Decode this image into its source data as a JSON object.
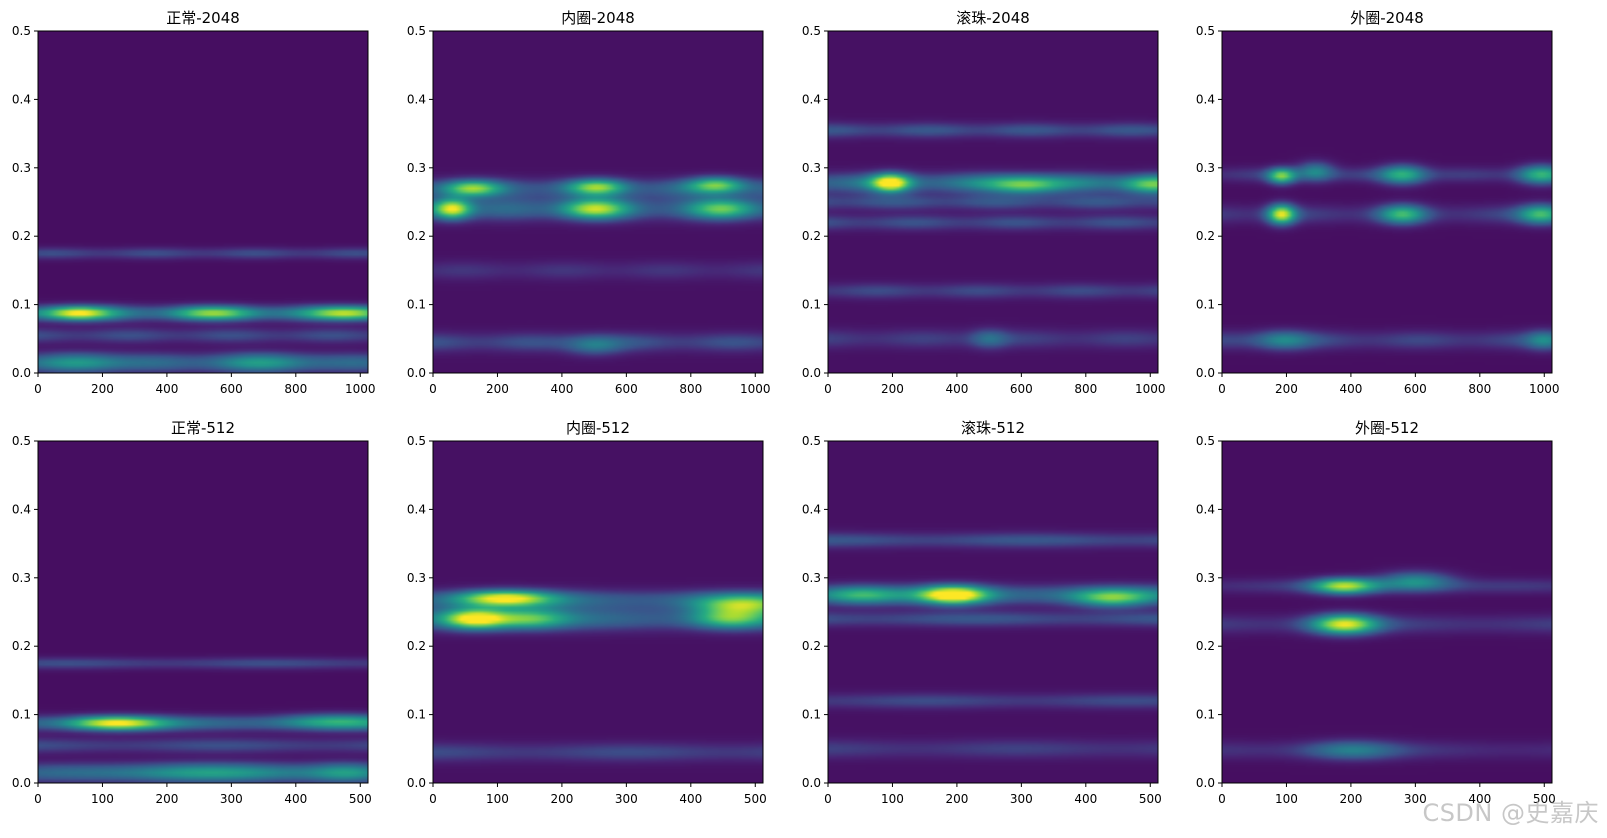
{
  "colormap": "viridis",
  "colors": {
    "low": "#440154",
    "mid": "#21918c",
    "high": "#fde725"
  },
  "watermark": "CSDN @史嘉庆",
  "chart_data": [
    {
      "type": "heatmap",
      "title": "正常-2048",
      "xlim": [
        0,
        1024
      ],
      "ylim": [
        0,
        0.5
      ],
      "xticks": [
        0,
        200,
        400,
        600,
        800,
        1000
      ],
      "yticks": [
        0.0,
        0.1,
        0.2,
        0.3,
        0.4,
        0.5
      ],
      "base_level": 0.05,
      "bands": [
        {
          "y": 0.0875,
          "width": 0.008,
          "level": 0.38
        },
        {
          "y": 0.175,
          "width": 0.006,
          "level": 0.2
        },
        {
          "y": 0.055,
          "width": 0.008,
          "level": 0.2
        },
        {
          "y": 0.015,
          "width": 0.01,
          "level": 0.3
        }
      ],
      "blobs": [
        {
          "x": 120,
          "y": 0.0875,
          "sx": 70,
          "sy": 0.007,
          "level": 0.7
        },
        {
          "x": 550,
          "y": 0.0875,
          "sx": 90,
          "sy": 0.007,
          "level": 0.45
        },
        {
          "x": 960,
          "y": 0.0875,
          "sx": 80,
          "sy": 0.007,
          "level": 0.6
        },
        {
          "x": 150,
          "y": 0.015,
          "sx": 90,
          "sy": 0.01,
          "level": 0.25
        },
        {
          "x": 700,
          "y": 0.015,
          "sx": 120,
          "sy": 0.01,
          "level": 0.22
        }
      ]
    },
    {
      "type": "heatmap",
      "title": "内圈-2048",
      "xlim": [
        0,
        1024
      ],
      "ylim": [
        0,
        0.5
      ],
      "xticks": [
        0,
        200,
        400,
        600,
        800,
        1000
      ],
      "yticks": [
        0.0,
        0.1,
        0.2,
        0.3,
        0.4,
        0.5
      ],
      "base_level": 0.06,
      "bands": [
        {
          "y": 0.27,
          "width": 0.01,
          "level": 0.28
        },
        {
          "y": 0.24,
          "width": 0.012,
          "level": 0.3
        },
        {
          "y": 0.045,
          "width": 0.01,
          "level": 0.2
        },
        {
          "y": 0.15,
          "width": 0.01,
          "level": 0.12
        }
      ],
      "blobs": [
        {
          "x": 60,
          "y": 0.24,
          "sx": 40,
          "sy": 0.01,
          "level": 0.75
        },
        {
          "x": 120,
          "y": 0.27,
          "sx": 60,
          "sy": 0.008,
          "level": 0.55
        },
        {
          "x": 500,
          "y": 0.24,
          "sx": 70,
          "sy": 0.01,
          "level": 0.6
        },
        {
          "x": 510,
          "y": 0.272,
          "sx": 60,
          "sy": 0.008,
          "level": 0.55
        },
        {
          "x": 880,
          "y": 0.275,
          "sx": 60,
          "sy": 0.008,
          "level": 0.55
        },
        {
          "x": 900,
          "y": 0.24,
          "sx": 70,
          "sy": 0.01,
          "level": 0.45
        },
        {
          "x": 500,
          "y": 0.04,
          "sx": 60,
          "sy": 0.01,
          "level": 0.25
        }
      ]
    },
    {
      "type": "heatmap",
      "title": "滚珠-2048",
      "xlim": [
        0,
        1024
      ],
      "ylim": [
        0,
        0.5
      ],
      "xticks": [
        0,
        200,
        400,
        600,
        800,
        1000
      ],
      "yticks": [
        0.0,
        0.1,
        0.2,
        0.3,
        0.4,
        0.5
      ],
      "base_level": 0.06,
      "bands": [
        {
          "y": 0.355,
          "width": 0.008,
          "level": 0.22
        },
        {
          "y": 0.278,
          "width": 0.01,
          "level": 0.38
        },
        {
          "y": 0.25,
          "width": 0.008,
          "level": 0.22
        },
        {
          "y": 0.22,
          "width": 0.008,
          "level": 0.2
        },
        {
          "y": 0.12,
          "width": 0.008,
          "level": 0.18
        },
        {
          "y": 0.05,
          "width": 0.01,
          "level": 0.15
        }
      ],
      "blobs": [
        {
          "x": 195,
          "y": 0.278,
          "sx": 40,
          "sy": 0.009,
          "level": 0.8
        },
        {
          "x": 610,
          "y": 0.275,
          "sx": 80,
          "sy": 0.009,
          "level": 0.5
        },
        {
          "x": 1000,
          "y": 0.275,
          "sx": 60,
          "sy": 0.009,
          "level": 0.45
        },
        {
          "x": 500,
          "y": 0.05,
          "sx": 40,
          "sy": 0.01,
          "level": 0.22
        }
      ]
    },
    {
      "type": "heatmap",
      "title": "外圈-2048",
      "xlim": [
        0,
        1024
      ],
      "ylim": [
        0,
        0.5
      ],
      "xticks": [
        0,
        200,
        400,
        600,
        800,
        1000
      ],
      "yticks": [
        0.0,
        0.1,
        0.2,
        0.3,
        0.4,
        0.5
      ],
      "base_level": 0.05,
      "bands": [
        {
          "y": 0.29,
          "width": 0.008,
          "level": 0.15
        },
        {
          "y": 0.232,
          "width": 0.01,
          "level": 0.16
        },
        {
          "y": 0.048,
          "width": 0.01,
          "level": 0.18
        }
      ],
      "blobs": [
        {
          "x": 185,
          "y": 0.232,
          "sx": 30,
          "sy": 0.01,
          "level": 0.8
        },
        {
          "x": 185,
          "y": 0.288,
          "sx": 30,
          "sy": 0.008,
          "level": 0.65
        },
        {
          "x": 290,
          "y": 0.295,
          "sx": 40,
          "sy": 0.01,
          "level": 0.35
        },
        {
          "x": 560,
          "y": 0.232,
          "sx": 50,
          "sy": 0.01,
          "level": 0.5
        },
        {
          "x": 560,
          "y": 0.29,
          "sx": 50,
          "sy": 0.01,
          "level": 0.5
        },
        {
          "x": 990,
          "y": 0.232,
          "sx": 50,
          "sy": 0.01,
          "level": 0.55
        },
        {
          "x": 990,
          "y": 0.29,
          "sx": 50,
          "sy": 0.01,
          "level": 0.5
        },
        {
          "x": 190,
          "y": 0.048,
          "sx": 60,
          "sy": 0.01,
          "level": 0.3
        },
        {
          "x": 1000,
          "y": 0.048,
          "sx": 40,
          "sy": 0.01,
          "level": 0.3
        }
      ]
    },
    {
      "type": "heatmap",
      "title": "正常-512",
      "xlim": [
        0,
        512
      ],
      "ylim": [
        0,
        0.5
      ],
      "xticks": [
        0,
        100,
        200,
        300,
        400,
        500
      ],
      "yticks": [
        0.0,
        0.1,
        0.2,
        0.3,
        0.4,
        0.5
      ],
      "base_level": 0.05,
      "bands": [
        {
          "y": 0.0875,
          "width": 0.008,
          "level": 0.32
        },
        {
          "y": 0.175,
          "width": 0.006,
          "level": 0.2
        },
        {
          "y": 0.055,
          "width": 0.008,
          "level": 0.2
        },
        {
          "y": 0.015,
          "width": 0.01,
          "level": 0.3
        }
      ],
      "blobs": [
        {
          "x": 120,
          "y": 0.0875,
          "sx": 50,
          "sy": 0.007,
          "level": 0.75
        },
        {
          "x": 460,
          "y": 0.09,
          "sx": 60,
          "sy": 0.008,
          "level": 0.35
        },
        {
          "x": 250,
          "y": 0.015,
          "sx": 80,
          "sy": 0.01,
          "level": 0.3
        },
        {
          "x": 480,
          "y": 0.015,
          "sx": 40,
          "sy": 0.01,
          "level": 0.3
        }
      ]
    },
    {
      "type": "heatmap",
      "title": "内圈-512",
      "xlim": [
        0,
        512
      ],
      "ylim": [
        0,
        0.5
      ],
      "xticks": [
        0,
        100,
        200,
        300,
        400,
        500
      ],
      "yticks": [
        0.0,
        0.1,
        0.2,
        0.3,
        0.4,
        0.5
      ],
      "base_level": 0.06,
      "bands": [
        {
          "y": 0.268,
          "width": 0.01,
          "level": 0.3
        },
        {
          "y": 0.24,
          "width": 0.012,
          "level": 0.3
        },
        {
          "y": 0.045,
          "width": 0.01,
          "level": 0.18
        }
      ],
      "blobs": [
        {
          "x": 65,
          "y": 0.24,
          "sx": 35,
          "sy": 0.01,
          "level": 0.85
        },
        {
          "x": 110,
          "y": 0.27,
          "sx": 50,
          "sy": 0.008,
          "level": 0.75
        },
        {
          "x": 150,
          "y": 0.24,
          "sx": 40,
          "sy": 0.01,
          "level": 0.45
        },
        {
          "x": 480,
          "y": 0.26,
          "sx": 50,
          "sy": 0.01,
          "level": 0.55
        },
        {
          "x": 460,
          "y": 0.24,
          "sx": 40,
          "sy": 0.01,
          "level": 0.45
        }
      ]
    },
    {
      "type": "heatmap",
      "title": "滚珠-512",
      "xlim": [
        0,
        512
      ],
      "ylim": [
        0,
        0.5
      ],
      "xticks": [
        0,
        100,
        200,
        300,
        400,
        500
      ],
      "yticks": [
        0.0,
        0.1,
        0.2,
        0.3,
        0.4,
        0.5
      ],
      "base_level": 0.06,
      "bands": [
        {
          "y": 0.355,
          "width": 0.008,
          "level": 0.22
        },
        {
          "y": 0.275,
          "width": 0.01,
          "level": 0.38
        },
        {
          "y": 0.24,
          "width": 0.008,
          "level": 0.22
        },
        {
          "y": 0.12,
          "width": 0.008,
          "level": 0.18
        },
        {
          "y": 0.05,
          "width": 0.01,
          "level": 0.15
        }
      ],
      "blobs": [
        {
          "x": 195,
          "y": 0.275,
          "sx": 35,
          "sy": 0.009,
          "level": 0.85
        },
        {
          "x": 440,
          "y": 0.27,
          "sx": 40,
          "sy": 0.009,
          "level": 0.45
        },
        {
          "x": 50,
          "y": 0.275,
          "sx": 40,
          "sy": 0.009,
          "level": 0.35
        }
      ]
    },
    {
      "type": "heatmap",
      "title": "外圈-512",
      "xlim": [
        0,
        512
      ],
      "ylim": [
        0,
        0.5
      ],
      "xticks": [
        0,
        100,
        200,
        300,
        400,
        500
      ],
      "yticks": [
        0.0,
        0.1,
        0.2,
        0.3,
        0.4,
        0.5
      ],
      "base_level": 0.05,
      "bands": [
        {
          "y": 0.288,
          "width": 0.008,
          "level": 0.14
        },
        {
          "y": 0.232,
          "width": 0.01,
          "level": 0.16
        },
        {
          "y": 0.048,
          "width": 0.01,
          "level": 0.12
        }
      ],
      "blobs": [
        {
          "x": 190,
          "y": 0.232,
          "sx": 35,
          "sy": 0.01,
          "level": 0.8
        },
        {
          "x": 190,
          "y": 0.288,
          "sx": 35,
          "sy": 0.008,
          "level": 0.75
        },
        {
          "x": 300,
          "y": 0.295,
          "sx": 40,
          "sy": 0.01,
          "level": 0.4
        },
        {
          "x": 200,
          "y": 0.048,
          "sx": 50,
          "sy": 0.01,
          "level": 0.3
        }
      ]
    }
  ]
}
